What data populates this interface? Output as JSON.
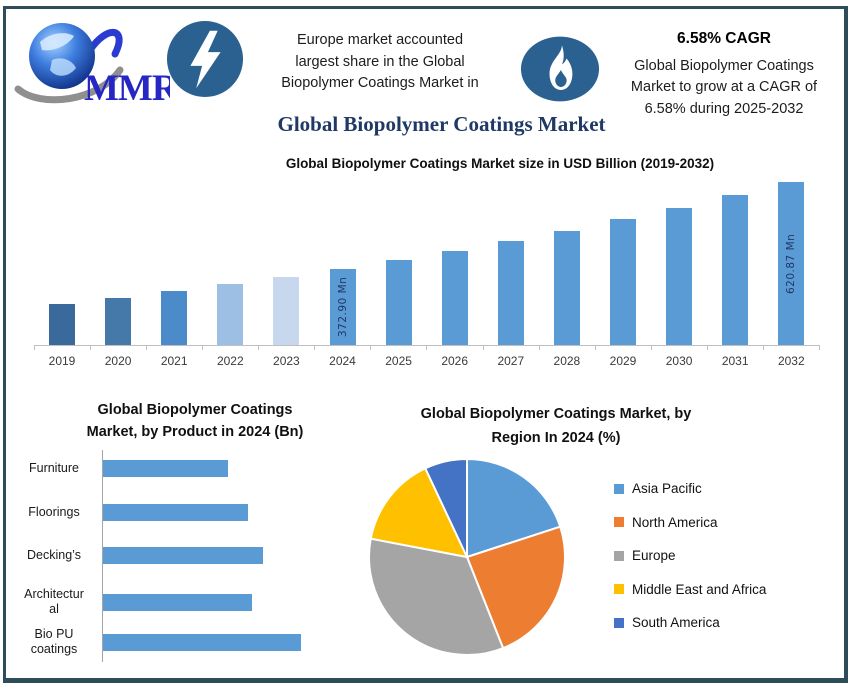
{
  "frame": {
    "border_color": "#2e4d5b",
    "background": "#ffffff"
  },
  "colors": {
    "badge_blue": "#2b6191",
    "logo_text_blue": "#2626c4",
    "title_navy": "#1f3864",
    "series_blue": "#5b9bd5"
  },
  "header": {
    "logo": {
      "text": "MMR"
    },
    "highlight_left": {
      "icon": "lightning-bolt-icon",
      "lines": [
        "Europe market accounted",
        "largest share in the Global",
        "Biopolymer Coatings Market in"
      ]
    },
    "highlight_right": {
      "icon": "flame-icon",
      "heading": "6.58% CAGR",
      "lines": [
        "Global Biopolymer Coatings",
        "Market to grow at a CAGR of",
        "6.58% during 2025-2032"
      ]
    }
  },
  "main_title": "Global Biopolymer Coatings Market",
  "chart_data": [
    {
      "id": "market-size-bar-chart",
      "type": "bar",
      "title": "Global Biopolymer Coatings Market size in USD Billion (2019-2032)",
      "categories": [
        "2019",
        "2020",
        "2021",
        "2022",
        "2023",
        "2024",
        "2025",
        "2026",
        "2027",
        "2028",
        "2029",
        "2030",
        "2031",
        "2032"
      ],
      "values": [
        271.2,
        289.0,
        308.0,
        328.3,
        349.9,
        372.9,
        397.4,
        423.6,
        451.5,
        481.2,
        512.8,
        546.6,
        582.5,
        620.87
      ],
      "unit": "Mn",
      "cagr_pct": 6.58,
      "data_labels": [
        "",
        "",
        "",
        "",
        "",
        "372.90 Mn",
        "",
        "",
        "",
        "",
        "",
        "",
        "",
        "620.87 Mn"
      ],
      "bar_colors": [
        "#3a6a9b",
        "#4579a9",
        "#4c8bc9",
        "#9dbfe3",
        "#c7d8ee",
        "#5b9bd5",
        "#5b9bd5",
        "#5b9bd5",
        "#5b9bd5",
        "#5b9bd5",
        "#5b9bd5",
        "#5b9bd5",
        "#5b9bd5",
        "#5b9bd5"
      ],
      "y_axis_shown": false,
      "grid": false
    },
    {
      "id": "product-bar-chart",
      "type": "bar",
      "orientation": "horizontal",
      "title_lines": [
        "Global Biopolymer Coatings",
        "Market, by Product  in 2024 (Bn)"
      ],
      "categories": [
        "Furniture",
        "Floorings",
        "Decking’s",
        "Architectural",
        "Bio PU coatings"
      ],
      "categories_display": [
        [
          "Furniture"
        ],
        [
          "Floorings"
        ],
        [
          "Decking’s"
        ],
        [
          "Architectur",
          "al"
        ],
        [
          "Bio PU",
          "coatings"
        ]
      ],
      "relative_values": [
        0.63,
        0.73,
        0.81,
        0.75,
        1.0
      ],
      "bar_color": "#5b9bd5",
      "x_axis_shown": false,
      "grid": false
    },
    {
      "id": "region-pie-chart",
      "type": "pie",
      "title_lines": [
        "Global Biopolymer Coatings Market, by",
        "Region In 2024 (%)"
      ],
      "slices": [
        {
          "label": "Asia Pacific",
          "value": 20,
          "color": "#5b9bd5"
        },
        {
          "label": "North America",
          "value": 24,
          "color": "#ed7d31"
        },
        {
          "label": "Europe",
          "value": 34,
          "color": "#a5a5a5"
        },
        {
          "label": "Middle East and Africa",
          "value": 15,
          "color": "#ffc000"
        },
        {
          "label": "South America",
          "value": 7,
          "color": "#4472c4"
        }
      ],
      "start_angle_deg": 0,
      "direction": "clockwise",
      "legend_position": "right"
    }
  ]
}
